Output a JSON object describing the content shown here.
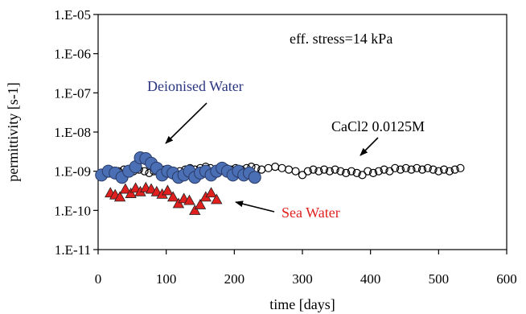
{
  "chart_data": {
    "type": "scatter",
    "title": "",
    "xlabel": "time [days]",
    "ylabel": "permittivity [s-1]",
    "xlim": [
      0,
      600
    ],
    "ylim": [
      1e-11,
      1e-05
    ],
    "yscale": "log",
    "grid": false,
    "x_ticks": [
      0,
      100,
      200,
      300,
      400,
      500,
      600
    ],
    "x_tick_labels": [
      "0",
      "100",
      "200",
      "300",
      "400",
      "500",
      "600"
    ],
    "y_ticks": [
      1e-11,
      1e-10,
      1e-09,
      1e-08,
      1e-07,
      1e-06,
      1e-05
    ],
    "y_tick_labels": [
      "1.E-11",
      "1.E-10",
      "1.E-09",
      "1.E-08",
      "1.E-07",
      "1.E-06",
      "1.E-05"
    ],
    "annotations": [
      {
        "text": "eff. stress=14 kPa",
        "color": "#000000"
      },
      {
        "text": "Deionised Water",
        "color": "#2a3580",
        "series": "Deionised Water"
      },
      {
        "text": "CaCl2 0.0125M",
        "color": "#000000",
        "series": "CaCl2 0.0125M"
      },
      {
        "text": "Sea Water",
        "color": "#e0201e",
        "series": "Sea Water"
      }
    ],
    "series": [
      {
        "name": "CaCl2 0.0125M",
        "marker": "open-circle",
        "color": "#000000",
        "x": [
          8,
          15,
          22,
          30,
          38,
          45,
          52,
          60,
          68,
          75,
          82,
          90,
          98,
          105,
          112,
          120,
          128,
          135,
          142,
          150,
          158,
          165,
          172,
          180,
          188,
          195,
          202,
          210,
          218,
          225,
          232,
          240,
          250,
          260,
          270,
          280,
          290,
          300,
          308,
          316,
          324,
          332,
          340,
          348,
          356,
          364,
          372,
          380,
          388,
          396,
          404,
          412,
          420,
          428,
          436,
          444,
          452,
          460,
          468,
          476,
          484,
          492,
          500,
          508,
          516,
          524,
          532
        ],
        "y": [
          8e-10,
          9e-10,
          1e-09,
          1e-09,
          1.1e-09,
          1e-09,
          1e-09,
          1.1e-09,
          1e-09,
          9e-10,
          1e-09,
          1e-09,
          1.1e-09,
          1e-09,
          9e-10,
          1e-09,
          1.1e-09,
          1.2e-09,
          1.1e-09,
          1.2e-09,
          1.3e-09,
          1.2e-09,
          1.1e-09,
          1.3e-09,
          1.2e-09,
          1.1e-09,
          1.2e-09,
          1.1e-09,
          1.2e-09,
          1.3e-09,
          1.2e-09,
          1.1e-09,
          1.2e-09,
          1.3e-09,
          1.2e-09,
          1.1e-09,
          1e-09,
          8e-10,
          1e-09,
          1.1e-09,
          1e-09,
          1.1e-09,
          1e-09,
          1.1e-09,
          1e-09,
          9e-10,
          1e-09,
          9e-10,
          8e-10,
          1e-09,
          9e-10,
          1e-09,
          1.1e-09,
          1e-09,
          1.2e-09,
          1.1e-09,
          1.2e-09,
          1.1e-09,
          1.2e-09,
          1.1e-09,
          1.2e-09,
          1.1e-09,
          1e-09,
          1.1e-09,
          1e-09,
          1.1e-09,
          1.2e-09
        ]
      },
      {
        "name": "Deionised Water",
        "marker": "filled-circle",
        "color": "#4a6fb5",
        "x": [
          5,
          15,
          25,
          35,
          45,
          55,
          62,
          70,
          78,
          86,
          94,
          102,
          110,
          118,
          126,
          134,
          142,
          150,
          158,
          166,
          174,
          182,
          190,
          198,
          206,
          214,
          222,
          230
        ],
        "y": [
          8e-10,
          1e-09,
          9e-10,
          7e-10,
          1e-09,
          1.3e-09,
          2.2e-09,
          2.1e-09,
          1.6e-09,
          1.2e-09,
          8e-10,
          1e-09,
          9e-10,
          7e-10,
          8e-10,
          1e-09,
          7e-10,
          9e-10,
          1e-09,
          8e-10,
          1e-09,
          1.2e-09,
          1e-09,
          8e-10,
          1e-09,
          8e-10,
          9e-10,
          7e-10
        ]
      },
      {
        "name": "Sea Water",
        "marker": "filled-triangle",
        "color": "#e0201e",
        "x": [
          18,
          25,
          32,
          40,
          48,
          55,
          62,
          70,
          78,
          86,
          94,
          102,
          110,
          118,
          126,
          134,
          142,
          150,
          158,
          166,
          174
        ],
        "y": [
          2.8e-10,
          2.5e-10,
          2.2e-10,
          3.5e-10,
          2.7e-10,
          3.7e-10,
          3e-10,
          3.8e-10,
          3.5e-10,
          3e-10,
          2.6e-10,
          3.2e-10,
          2.2e-10,
          1.5e-10,
          2e-10,
          1.8e-10,
          1e-10,
          1.4e-10,
          2.2e-10,
          2.8e-10,
          1.9e-10
        ]
      }
    ]
  }
}
